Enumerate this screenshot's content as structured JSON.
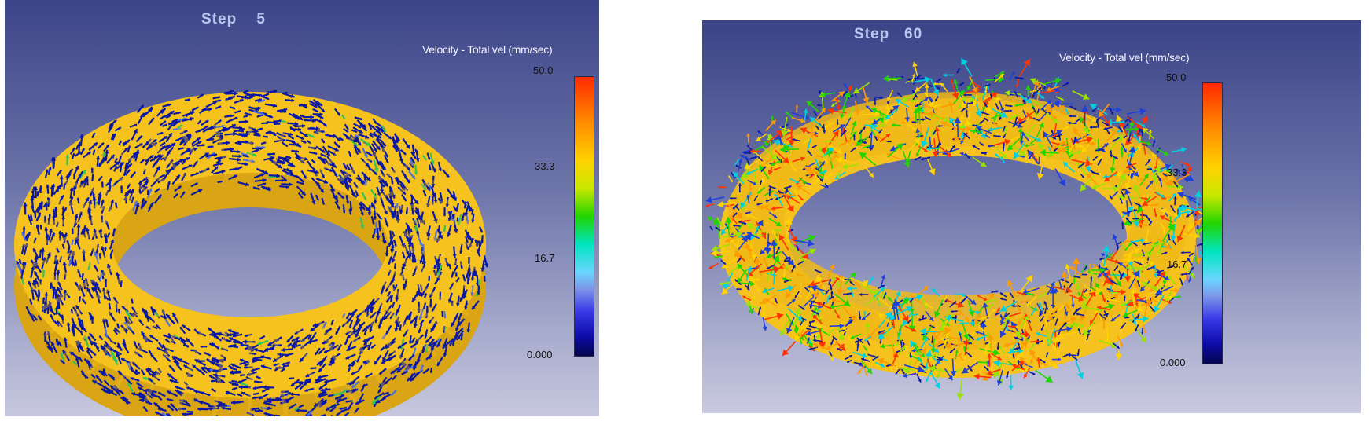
{
  "panels": [
    {
      "step_label": "Step",
      "step_value": "5",
      "legend": {
        "title": "Velocity - Total vel (mm/sec)",
        "ticks": [
          "50.0",
          "33.3",
          "16.7",
          "0.000"
        ]
      }
    },
    {
      "step_label": "Step",
      "step_value": "60",
      "legend": {
        "title": "Velocity - Total vel (mm/sec)",
        "ticks": [
          "50.0",
          "33.3",
          "16.7",
          "0.000"
        ]
      }
    }
  ],
  "colors": {
    "torus_surface": "#f6c21d",
    "arrow_low": "#0a1aa8",
    "arrow_mid": "#22d400",
    "arrow_high": "#ff3300"
  }
}
